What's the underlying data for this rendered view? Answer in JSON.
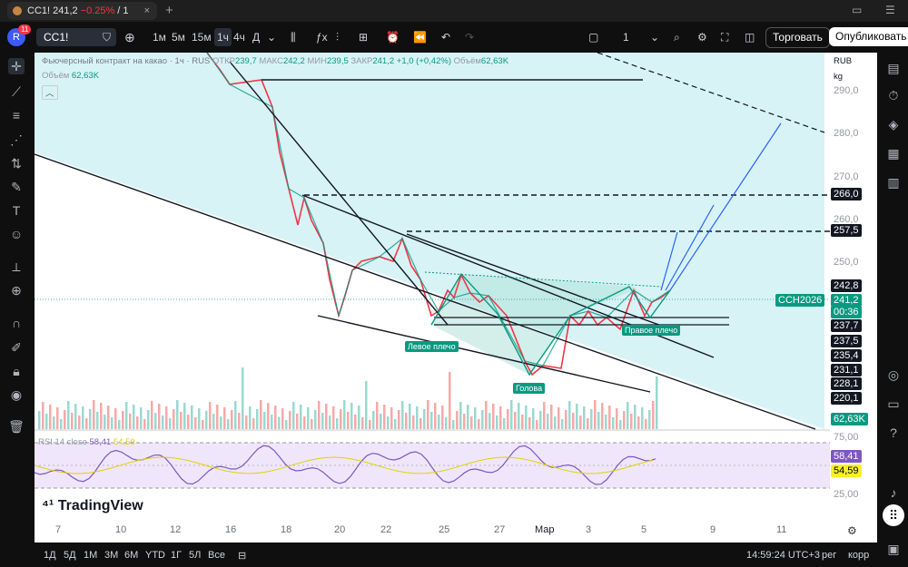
{
  "browser": {
    "tab_symbol": "CC1!",
    "tab_price": "241,2",
    "tab_change": "−0.25%",
    "tab_suffix": "/ 1",
    "close_glyph": "×",
    "newtab_glyph": "+"
  },
  "toolbar": {
    "avatar_letter": "R",
    "badge": "11",
    "symbol": "CC1!",
    "intervals": [
      "1м",
      "5м",
      "15м",
      "1ч",
      "4ч",
      "Д"
    ],
    "selected_interval": "1ч",
    "layout_count": "1",
    "trade_label": "Торговать",
    "publish_label": "Опубликовать"
  },
  "legend": {
    "title": "Фьючерсный контракт на какао · 1ч · RUS",
    "open_label": "ОТКР",
    "open": "239,7",
    "high_label": "МАКС",
    "high": "242,2",
    "low_label": "МИН",
    "low": "239,5",
    "close_label": "ЗАКР",
    "close": "241,2",
    "change": "+1,0 (+0,42%)",
    "volume_label": "Объём",
    "volume": "62,63K",
    "volume_row_label": "Объём",
    "volume_row_value": "62,63K",
    "rsi_label": "RSI 14 close",
    "rsi_value": "58,41",
    "rsi_ma": "54,59"
  },
  "price_axis": {
    "currency": "RUB",
    "unit": "kg",
    "ticks": [
      "290,0",
      "280,0",
      "270,0",
      "260,0",
      "250,0"
    ],
    "levels": [
      {
        "text": "266,0",
        "style": "black"
      },
      {
        "text": "257,5",
        "style": "black"
      },
      {
        "text": "242,8",
        "style": "black"
      },
      {
        "text": "241,2",
        "style": "teal"
      },
      {
        "text": "00:36",
        "style": "teal"
      },
      {
        "text": "237,7",
        "style": "black"
      },
      {
        "text": "237,5",
        "style": "black"
      },
      {
        "text": "235,4",
        "style": "black"
      },
      {
        "text": "231,1",
        "style": "black"
      },
      {
        "text": "228,1",
        "style": "black"
      },
      {
        "text": "220,1",
        "style": "black"
      },
      {
        "text": "62,63K",
        "style": "teal"
      }
    ],
    "symbol_tag": "CCH2026",
    "rsi_ticks": [
      "75,00",
      "25,00"
    ],
    "rsi_value_label": "58,41",
    "rsi_ma_label": "54,59"
  },
  "annotations": {
    "left_shoulder": "Левое плечо",
    "head": "Голова",
    "right_shoulder": "Правое плечо"
  },
  "time_axis": [
    "7",
    "10",
    "12",
    "16",
    "18",
    "20",
    "22",
    "25",
    "27",
    "Мар",
    "3",
    "5",
    "9",
    "11"
  ],
  "watermark": "TradingView",
  "bottom": {
    "ranges": [
      "1Д",
      "5Д",
      "1М",
      "3М",
      "6М",
      "YTD",
      "1Г",
      "5Л",
      "Все"
    ],
    "clock": "14:59:24 UTC+3",
    "session": "рег",
    "adjust": "корр"
  }
}
